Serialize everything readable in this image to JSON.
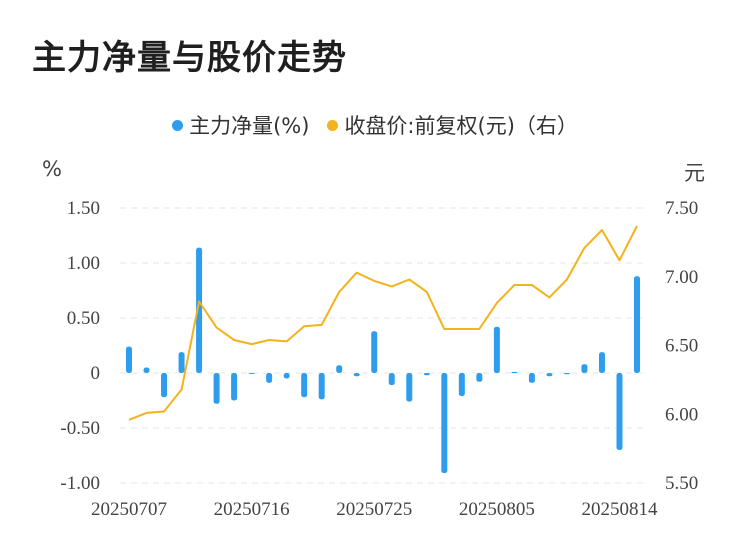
{
  "title": "主力净量与股价走势",
  "legend": {
    "net_label": "主力净量(%)",
    "price_label": "收盘价:前复权(元)（右）"
  },
  "units": {
    "left": "%",
    "right": "元"
  },
  "colors": {
    "bar": "#2e9ded",
    "line": "#f2b31b",
    "grid": "#e6e6e6"
  },
  "chart_data": {
    "type": "bar+line",
    "title": "主力净量与股价走势",
    "x_tick_labels": [
      "20250707",
      "20250716",
      "20250725",
      "20250805",
      "20250814"
    ],
    "y_left": {
      "label": "%",
      "ticks": [
        "1.50",
        "1.00",
        "0.50",
        "0",
        "-0.50",
        "-1.00"
      ],
      "lim": [
        -1.0,
        1.5
      ]
    },
    "y_right": {
      "label": "元",
      "ticks": [
        "7.50",
        "7.00",
        "6.50",
        "6.00",
        "5.50"
      ],
      "lim": [
        5.5,
        7.5
      ]
    },
    "series": [
      {
        "name": "主力净量(%)",
        "type": "bar",
        "values": [
          0.24,
          0.05,
          -0.22,
          0.19,
          1.14,
          -0.28,
          -0.25,
          0.0,
          -0.09,
          -0.05,
          -0.22,
          -0.24,
          0.07,
          -0.03,
          0.38,
          -0.11,
          -0.26,
          -0.02,
          -0.91,
          -0.21,
          -0.08,
          0.42,
          0.01,
          -0.09,
          -0.03,
          -0.01,
          0.08,
          0.19,
          -0.7,
          0.88
        ]
      },
      {
        "name": "收盘价:前复权(元)（右）",
        "type": "line",
        "values": [
          5.96,
          6.01,
          6.02,
          6.18,
          6.82,
          6.63,
          6.54,
          6.51,
          6.54,
          6.53,
          6.64,
          6.65,
          6.89,
          7.03,
          6.97,
          6.93,
          6.98,
          6.89,
          6.62,
          6.62,
          6.62,
          6.81,
          6.94,
          6.94,
          6.85,
          6.98,
          7.21,
          7.34,
          7.12,
          7.37
        ]
      }
    ]
  }
}
